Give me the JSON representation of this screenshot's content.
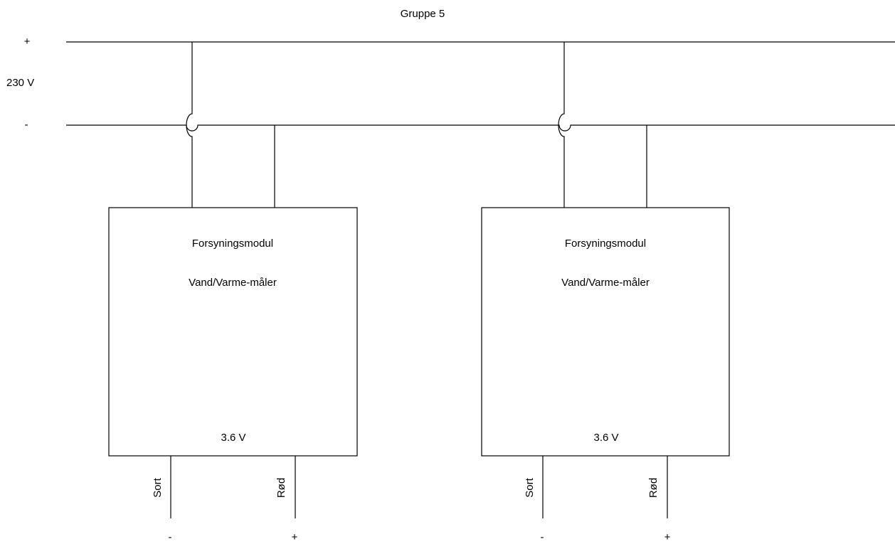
{
  "title": "Gruppe 5",
  "supply": {
    "plus_label": "+",
    "voltage_label": "230 V",
    "minus_label": "-"
  },
  "modules": [
    {
      "name": "Forsyningsmodul",
      "subtitle": "Vand/Varme-måler",
      "output_voltage": "3.6 V",
      "wire_black": "Sort",
      "wire_red": "Rød",
      "terminal_minus": "-",
      "terminal_plus": "+"
    },
    {
      "name": "Forsyningsmodul",
      "subtitle": "Vand/Varme-måler",
      "output_voltage": "3.6 V",
      "wire_black": "Sort",
      "wire_red": "Rød",
      "terminal_minus": "-",
      "terminal_plus": "+"
    }
  ]
}
